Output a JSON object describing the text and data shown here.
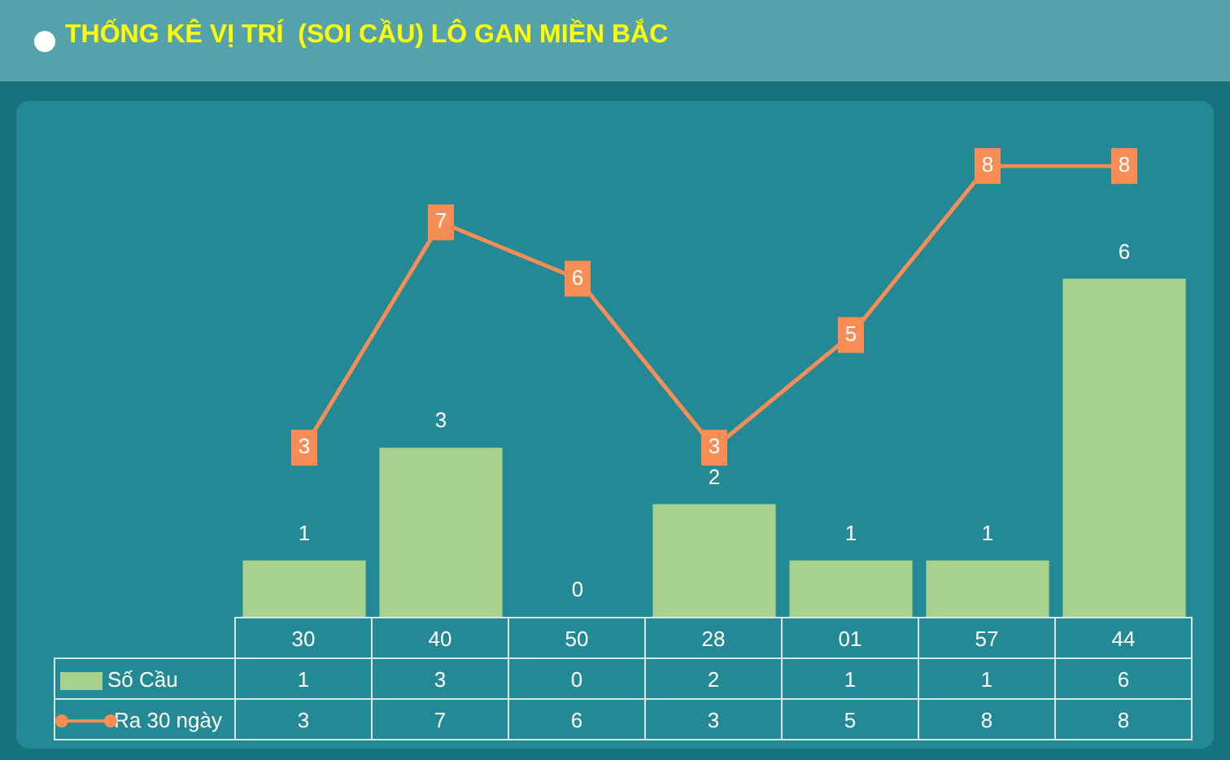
{
  "chart_data": {
    "type": "bar",
    "title": "THỐNG KÊ VỊ TRÍ  (SOI CẦU) LÔ GAN MIỀN BẮC",
    "categories": [
      "30",
      "40",
      "50",
      "28",
      "01",
      "57",
      "44"
    ],
    "series": [
      {
        "name": "Số Cầu",
        "color": "#a9d18e",
        "values": [
          1,
          3,
          0,
          2,
          1,
          1,
          6
        ],
        "value_labels": [
          "1",
          "3",
          "0",
          "2",
          "1",
          "1",
          "6"
        ]
      },
      {
        "name": "Ra 30 ngày",
        "type": "line",
        "color": "#f98d55",
        "values": [
          3,
          7,
          6,
          3,
          5,
          8,
          8
        ],
        "value_labels": [
          "3",
          "7",
          "6",
          "3",
          "5",
          "8",
          "8"
        ]
      }
    ],
    "data_labels": true,
    "legend": "bottom",
    "grid": false,
    "marker": "square"
  }
}
